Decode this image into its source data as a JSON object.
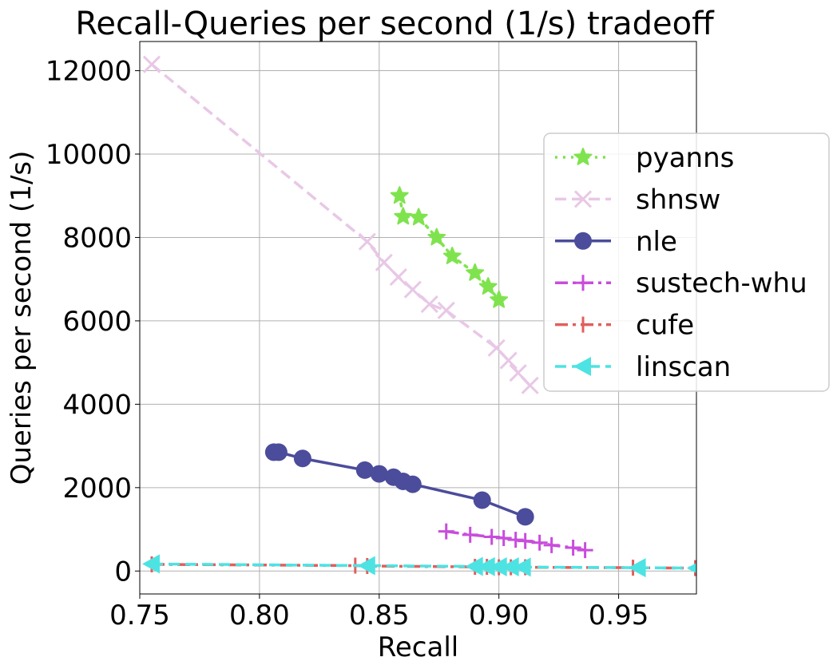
{
  "chart_data": {
    "type": "line",
    "title": "Recall-Queries per second (1/s) tradeoff",
    "xlabel": "Recall",
    "ylabel": "Queries per second (1/s)",
    "xlim": [
      0.75,
      0.9825
    ],
    "ylim": [
      -550,
      12700
    ],
    "xticks": [
      0.75,
      0.8,
      0.85,
      0.9,
      0.95
    ],
    "xtick_labels": [
      "0.75",
      "0.80",
      "0.85",
      "0.90",
      "0.95"
    ],
    "yticks": [
      0,
      2000,
      4000,
      6000,
      8000,
      10000,
      12000
    ],
    "ytick_labels": [
      "0",
      "2000",
      "4000",
      "6000",
      "8000",
      "10000",
      "12000"
    ],
    "grid": true,
    "legend_position": "right, outside-overlapping plot edge",
    "series": [
      {
        "name": "pyanns",
        "color": "#7fe34e",
        "line": "dotted",
        "marker": "star",
        "x": [
          0.8585,
          0.86,
          0.8665,
          0.874,
          0.8805,
          0.89,
          0.8955,
          0.9
        ],
        "y": [
          9000,
          8500,
          8480,
          8000,
          7550,
          7150,
          6820,
          6500
        ]
      },
      {
        "name": "shnsw",
        "color": "#e8c8e6",
        "line": "dashed",
        "marker": "x",
        "x": [
          0.755,
          0.845,
          0.852,
          0.858,
          0.864,
          0.871,
          0.878,
          0.899,
          0.904,
          0.908,
          0.913
        ],
        "y": [
          12150,
          7900,
          7400,
          7050,
          6750,
          6400,
          6250,
          5350,
          5050,
          4750,
          4450
        ]
      },
      {
        "name": "nle",
        "color": "#4b4c9b",
        "line": "solid",
        "marker": "circle",
        "x": [
          0.806,
          0.808,
          0.818,
          0.844,
          0.85,
          0.856,
          0.86,
          0.864,
          0.893,
          0.911
        ],
        "y": [
          2850,
          2850,
          2700,
          2420,
          2330,
          2250,
          2150,
          2080,
          1700,
          1300
        ]
      },
      {
        "name": "sustech-whu",
        "color": "#c84ddc",
        "line": "dashdot",
        "marker": "plus",
        "x": [
          0.878,
          0.888,
          0.897,
          0.902,
          0.907,
          0.911,
          0.917,
          0.922,
          0.931,
          0.936
        ],
        "y": [
          950,
          870,
          820,
          790,
          750,
          720,
          680,
          620,
          560,
          500
        ]
      },
      {
        "name": "cufe",
        "color": "#e05f5c",
        "line": "dashdot",
        "marker": "vline",
        "x": [
          0.755,
          0.84,
          0.845,
          0.89,
          0.895,
          0.9,
          0.905,
          0.911,
          0.956,
          0.982
        ],
        "y": [
          160,
          130,
          120,
          100,
          100,
          90,
          90,
          90,
          80,
          70
        ]
      },
      {
        "name": "linscan",
        "color": "#4de3e3",
        "line": "dashed",
        "marker": "triangle-left",
        "x": [
          0.755,
          0.845,
          0.89,
          0.895,
          0.9,
          0.905,
          0.91,
          0.958,
          0.9825
        ],
        "y": [
          170,
          130,
          110,
          105,
          100,
          100,
          95,
          80,
          70
        ]
      }
    ]
  }
}
